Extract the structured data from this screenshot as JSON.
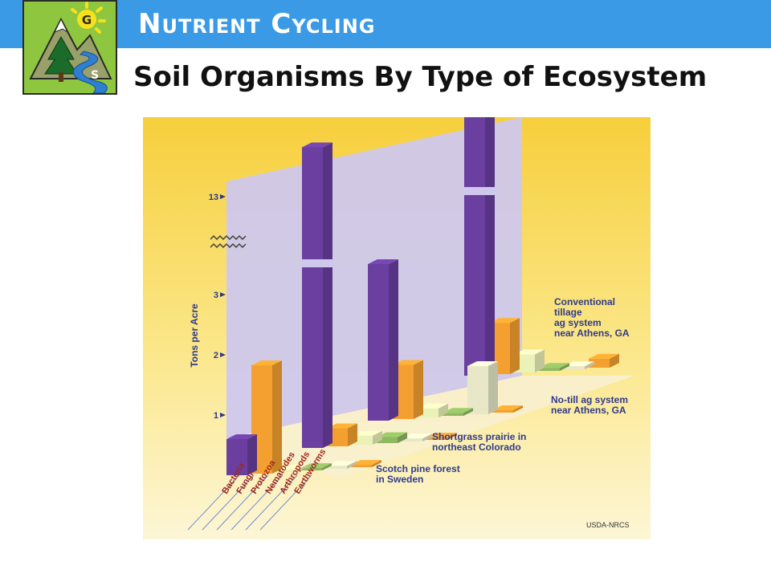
{
  "header": {
    "section_title": "Nutrient Cycling",
    "slide_title": "Soil Organisms By Type of Ecosystem"
  },
  "logo": {
    "icon": "mountain-tree-river-sun-logo",
    "letter_top": "G",
    "letter_bottom": "S"
  },
  "credit": "USDA-NRCS",
  "colors": {
    "header_blue": "#3a9ae6",
    "bacteria": "#6a3fa0",
    "fungi": "#f4a030",
    "protozoa": "#eaf2b8",
    "nematodes": "#8fb860",
    "arthropods": "#e8e8c8",
    "earthworms": "#f4a030",
    "label_blue": "#2f3a8c"
  },
  "chart_data": {
    "type": "bar",
    "projection": "3d",
    "ylabel": "Tons per Acre",
    "yticks": [
      "1",
      "2",
      "3",
      "13"
    ],
    "axis_break_between": [
      3,
      13
    ],
    "categories": [
      "Bacteria",
      "Fungi",
      "Protozoa",
      "Nematodes",
      "Arthropods",
      "Earthworms"
    ],
    "series": [
      {
        "name": "Scotch pine forest in Sweden",
        "values": [
          0.6,
          1.8,
          0.02,
          0.02,
          0.05,
          0.0
        ]
      },
      {
        "name": "Shortgrass prairie in northeast Colorado",
        "values": [
          13.5,
          0.3,
          0.15,
          0.1,
          0.05,
          0.0
        ]
      },
      {
        "name": "No-till ag system near Athens, GA",
        "values": [
          2.6,
          0.9,
          0.15,
          0.05,
          0.8,
          0.0
        ]
      },
      {
        "name": "Conventional tillage ag system near Athens, GA",
        "values": [
          13.8,
          0.85,
          0.3,
          0.05,
          0.05,
          0.15
        ]
      }
    ]
  }
}
